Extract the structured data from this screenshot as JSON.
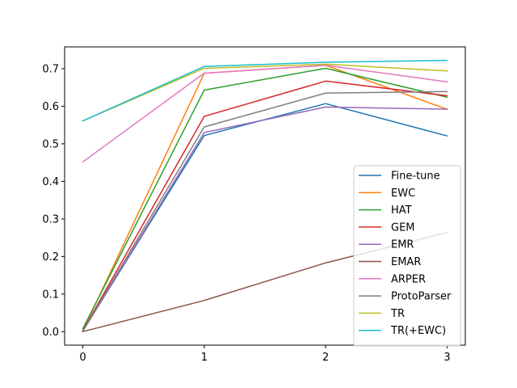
{
  "chart_data": {
    "type": "line",
    "title": "",
    "xlabel": "",
    "ylabel": "",
    "x": [
      0,
      1,
      2,
      3
    ],
    "xticks": [
      "0",
      "1",
      "2",
      "3"
    ],
    "yticks": [
      "0.0",
      "0.1",
      "0.2",
      "0.3",
      "0.4",
      "0.5",
      "0.6",
      "0.7"
    ],
    "xlim": [
      -0.15,
      3.15
    ],
    "ylim": [
      -0.036,
      0.758
    ],
    "grid": false,
    "legend_position": "lower-right",
    "series": [
      {
        "name": "Fine-tune",
        "color": "#1f77b4",
        "values": [
          0.002,
          0.522,
          0.607,
          0.521
        ]
      },
      {
        "name": "EWC",
        "color": "#ff7f0e",
        "values": [
          0.002,
          0.688,
          0.709,
          0.592
        ]
      },
      {
        "name": "HAT",
        "color": "#2ca02c",
        "values": [
          0.008,
          0.643,
          0.701,
          0.624
        ]
      },
      {
        "name": "GEM",
        "color": "#d62728",
        "values": [
          0.003,
          0.573,
          0.667,
          0.628
        ]
      },
      {
        "name": "EMR",
        "color": "#9467bd",
        "values": [
          0.001,
          0.53,
          0.598,
          0.592
        ]
      },
      {
        "name": "EMAR",
        "color": "#8c564b",
        "values": [
          0.0,
          0.083,
          0.183,
          0.264
        ]
      },
      {
        "name": "ARPER",
        "color": "#e377c2",
        "values": [
          0.452,
          0.688,
          0.709,
          0.665
        ]
      },
      {
        "name": "ProtoParser",
        "color": "#7f7f7f",
        "values": [
          0.002,
          0.545,
          0.635,
          0.639
        ]
      },
      {
        "name": "TR",
        "color": "#bcbd22",
        "values": [
          0.561,
          0.701,
          0.712,
          0.694
        ]
      },
      {
        "name": "TR(+EWC)",
        "color": "#17becf",
        "values": [
          0.561,
          0.706,
          0.717,
          0.722
        ]
      }
    ]
  }
}
